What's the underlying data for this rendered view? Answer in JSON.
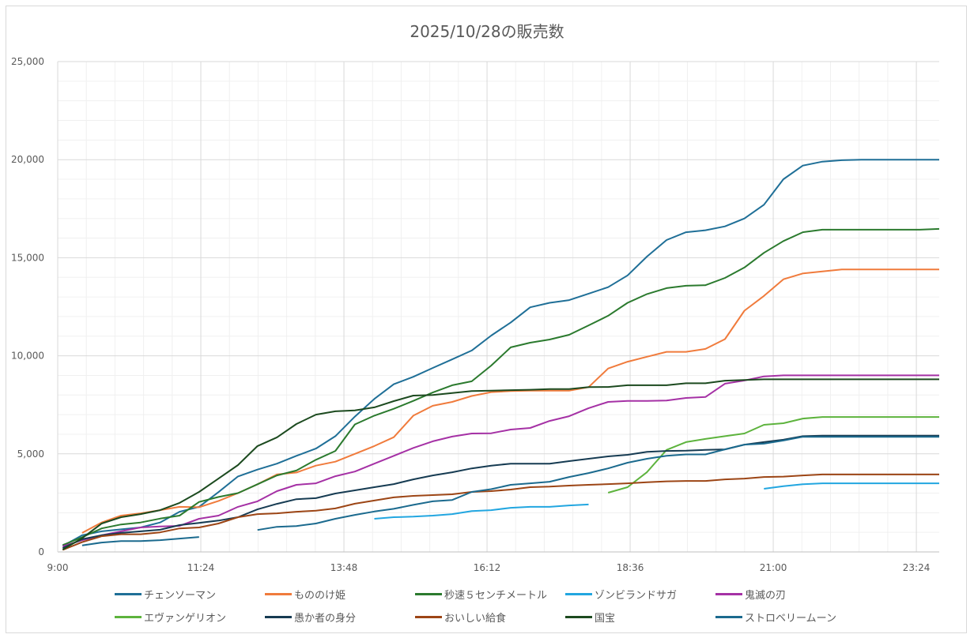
{
  "chart_data": {
    "type": "line",
    "title": "2025/10/28の販売数",
    "xlabel": "",
    "ylabel": "",
    "x_unit": "minutes after 9:00",
    "x_start_minutes": 5,
    "x_step_minutes": 19.6,
    "xlim": [
      0,
      887
    ],
    "x_ticks": [
      {
        "minutes": 0,
        "label": "9:00"
      },
      {
        "minutes": 144,
        "label": "11:24"
      },
      {
        "minutes": 288,
        "label": "13:48"
      },
      {
        "minutes": 432,
        "label": "16:12"
      },
      {
        "minutes": 576,
        "label": "18:36"
      },
      {
        "minutes": 720,
        "label": "21:00"
      },
      {
        "minutes": 864,
        "label": "23:24"
      }
    ],
    "ylim": [
      0,
      25000
    ],
    "y_ticks": [
      {
        "value": 0,
        "label": "0"
      },
      {
        "value": 5000,
        "label": "5,000"
      },
      {
        "value": 10000,
        "label": "10,000"
      },
      {
        "value": 15000,
        "label": "15,000"
      },
      {
        "value": 20000,
        "label": "20,000"
      },
      {
        "value": 25000,
        "label": "25,000"
      }
    ],
    "grid": true,
    "legend_position": "bottom",
    "series": [
      {
        "name": "チェンソーマン",
        "color": "#1f6f97",
        "values": [
          300,
          850,
          1050,
          1150,
          1250,
          1500,
          2050,
          2300,
          3050,
          3850,
          4200,
          4500,
          4900,
          5270,
          5900,
          6900,
          7800,
          8550,
          8930,
          9380,
          9820,
          10270,
          11030,
          11700,
          12470,
          12700,
          12840,
          13170,
          13500,
          14100,
          15060,
          15900,
          16300,
          16400,
          16600,
          17000,
          17700,
          19000,
          19700,
          19900,
          19970,
          20000,
          20000,
          20000,
          20000,
          20000
        ]
      },
      {
        "name": "もののけ姫",
        "color": "#f07b3c",
        "values": [
          null,
          970,
          1500,
          1850,
          1970,
          2130,
          2300,
          2280,
          2600,
          3000,
          3450,
          3950,
          4050,
          4400,
          4600,
          5000,
          5400,
          5850,
          6950,
          7450,
          7650,
          7950,
          8150,
          8200,
          8220,
          8220,
          8220,
          8400,
          9350,
          9700,
          9950,
          10200,
          10200,
          10350,
          10850,
          12300,
          13050,
          13900,
          14200,
          14300,
          14400,
          14400,
          14400,
          14400,
          14400,
          14400
        ]
      },
      {
        "name": "秒速５センチメートル",
        "color": "#2b7a2e",
        "values": [
          350,
          750,
          1200,
          1400,
          1500,
          1700,
          1850,
          2550,
          2800,
          3000,
          3450,
          3900,
          4150,
          4700,
          5150,
          6500,
          6950,
          7300,
          7700,
          8130,
          8500,
          8700,
          9500,
          10430,
          10670,
          10830,
          11070,
          11550,
          12040,
          12700,
          13150,
          13450,
          13570,
          13600,
          13970,
          14500,
          15250,
          15850,
          16300,
          16430,
          16430,
          16430,
          16430,
          16430,
          16430,
          16470
        ]
      },
      {
        "name": "ゾンビランドサガ",
        "color": "#22a6e0",
        "values": [
          null,
          null,
          null,
          null,
          null,
          null,
          null,
          null,
          null,
          null,
          null,
          null,
          null,
          null,
          null,
          null,
          1690,
          1770,
          1800,
          1850,
          1930,
          2080,
          2130,
          2250,
          2300,
          2300,
          2370,
          2420,
          null,
          null,
          null,
          null,
          null,
          null,
          null,
          null,
          3220,
          3350,
          3450,
          3500,
          3500,
          3500,
          3500,
          3500,
          3500,
          3500
        ]
      },
      {
        "name": "鬼滅の刃",
        "color": "#a531a5",
        "values": [
          280,
          600,
          850,
          1050,
          1250,
          1300,
          1330,
          1690,
          1850,
          2300,
          2580,
          3100,
          3420,
          3500,
          3860,
          4100,
          4500,
          4900,
          5300,
          5640,
          5880,
          6040,
          6050,
          6240,
          6320,
          6680,
          6920,
          7330,
          7650,
          7700,
          7700,
          7720,
          7850,
          7900,
          8580,
          8740,
          8950,
          9000,
          9000,
          9000,
          9000,
          9000,
          9000,
          9000,
          9000,
          9000
        ]
      },
      {
        "name": "エヴァンゲリオン",
        "color": "#5db33d",
        "values": [
          null,
          null,
          null,
          null,
          null,
          null,
          null,
          null,
          null,
          null,
          null,
          null,
          null,
          null,
          null,
          null,
          null,
          null,
          null,
          null,
          null,
          null,
          null,
          null,
          null,
          null,
          null,
          null,
          3020,
          3300,
          4070,
          5200,
          5600,
          5760,
          5900,
          6040,
          6480,
          6560,
          6800,
          6880,
          6880,
          6880,
          6880,
          6880,
          6880,
          6880
        ]
      },
      {
        "name": "愚か者の身分",
        "color": "#163b52",
        "values": [
          200,
          650,
          850,
          970,
          1050,
          1130,
          1370,
          1480,
          1600,
          1770,
          2170,
          2450,
          2690,
          2740,
          2980,
          3140,
          3300,
          3460,
          3700,
          3900,
          4060,
          4260,
          4400,
          4500,
          4500,
          4500,
          4630,
          4750,
          4870,
          4950,
          5100,
          5150,
          5160,
          5200,
          5230,
          5470,
          5600,
          5720,
          5900,
          5930,
          5930,
          5930,
          5930,
          5930,
          5930,
          5930
        ]
      },
      {
        "name": "おいしい給食",
        "color": "#9c4515",
        "values": [
          100,
          500,
          800,
          900,
          900,
          1000,
          1200,
          1250,
          1450,
          1770,
          1930,
          1970,
          2050,
          2100,
          2220,
          2460,
          2620,
          2780,
          2860,
          2900,
          2940,
          3060,
          3100,
          3180,
          3300,
          3330,
          3380,
          3420,
          3460,
          3500,
          3550,
          3600,
          3620,
          3620,
          3700,
          3740,
          3820,
          3840,
          3900,
          3950,
          3950,
          3950,
          3950,
          3950,
          3950,
          3950
        ]
      },
      {
        "name": "国宝",
        "color": "#1c4a1f",
        "values": [
          120,
          700,
          1450,
          1770,
          1930,
          2130,
          2500,
          3060,
          3740,
          4430,
          5400,
          5840,
          6520,
          7000,
          7170,
          7220,
          7370,
          7690,
          7970,
          8000,
          8100,
          8200,
          8220,
          8250,
          8270,
          8300,
          8300,
          8400,
          8410,
          8500,
          8500,
          8500,
          8600,
          8600,
          8730,
          8770,
          8800,
          8800,
          8800,
          8800,
          8800,
          8800,
          8800,
          8800,
          8800,
          8800
        ]
      },
      {
        "name": "ストロベリームーン",
        "color": "#1b6a8e",
        "values": [
          null,
          330,
          480,
          550,
          550,
          600,
          680,
          760,
          null,
          null,
          1120,
          1280,
          1320,
          1450,
          1690,
          1890,
          2060,
          2200,
          2400,
          2580,
          2650,
          3060,
          3200,
          3420,
          3500,
          3580,
          3820,
          4020,
          4260,
          4550,
          4750,
          4900,
          4970,
          4970,
          5230,
          5470,
          5520,
          5680,
          5870,
          5870,
          5870,
          5870,
          5870,
          5870,
          5870,
          5870
        ]
      }
    ]
  }
}
